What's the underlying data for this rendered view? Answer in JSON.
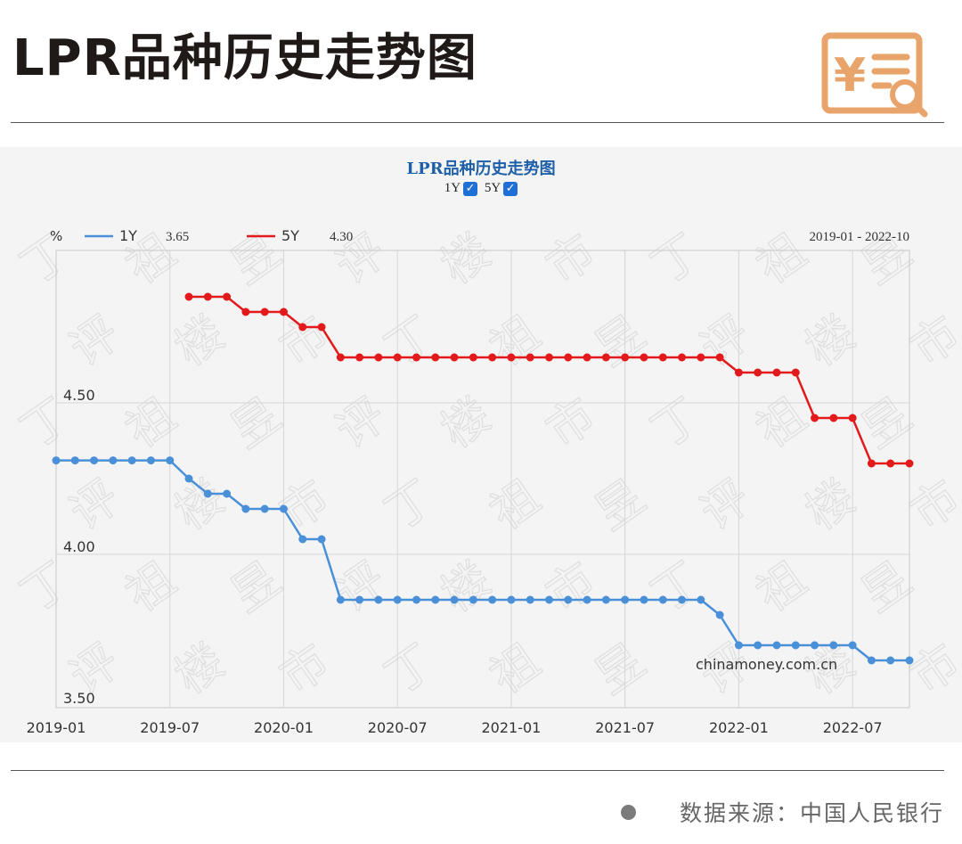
{
  "page": {
    "title": "LPR品种历史走势图",
    "source": "数据来源：中国人民银行"
  },
  "colors": {
    "accent_logo": "#e8a46a",
    "series_1y": "#4a90d9",
    "series_5y": "#e31a1c",
    "heading": "#1d5fa8"
  },
  "logo": {
    "icon": "yuan-document-search-icon"
  },
  "chart_data": {
    "type": "line",
    "title": "LPR品种历史走势图",
    "toggles": [
      {
        "label": "1Y",
        "checked": true
      },
      {
        "label": "5Y",
        "checked": true
      }
    ],
    "ylabel": "%",
    "date_range": "2019-01 - 2022-10",
    "watermark_text": "chinamoney.com.cn",
    "legend": [
      {
        "name": "1Y",
        "latest": "3.65"
      },
      {
        "name": "5Y",
        "latest": "4.30"
      }
    ],
    "legend_position": "top-left",
    "grid": true,
    "xlim": [
      "2019-01",
      "2022-10"
    ],
    "ylim": [
      3.5,
      4.95
    ],
    "y_ticks": [
      "4.50",
      "4.00",
      "3.50"
    ],
    "x_ticks": [
      "2019-01",
      "2019-07",
      "2020-01",
      "2020-07",
      "2021-01",
      "2021-07",
      "2022-01",
      "2022-07"
    ],
    "x": [
      "2019-01",
      "2019-02",
      "2019-03",
      "2019-04",
      "2019-05",
      "2019-06",
      "2019-07",
      "2019-08",
      "2019-09",
      "2019-10",
      "2019-11",
      "2019-12",
      "2020-01",
      "2020-02",
      "2020-03",
      "2020-04",
      "2020-05",
      "2020-06",
      "2020-07",
      "2020-08",
      "2020-09",
      "2020-10",
      "2020-11",
      "2020-12",
      "2021-01",
      "2021-02",
      "2021-03",
      "2021-04",
      "2021-05",
      "2021-06",
      "2021-07",
      "2021-08",
      "2021-09",
      "2021-10",
      "2021-11",
      "2021-12",
      "2022-01",
      "2022-02",
      "2022-03",
      "2022-04",
      "2022-05",
      "2022-06",
      "2022-07",
      "2022-08",
      "2022-09",
      "2022-10"
    ],
    "series": [
      {
        "name": "1Y",
        "values": [
          4.31,
          4.31,
          4.31,
          4.31,
          4.31,
          4.31,
          4.31,
          4.25,
          4.2,
          4.2,
          4.15,
          4.15,
          4.15,
          4.05,
          4.05,
          3.85,
          3.85,
          3.85,
          3.85,
          3.85,
          3.85,
          3.85,
          3.85,
          3.85,
          3.85,
          3.85,
          3.85,
          3.85,
          3.85,
          3.85,
          3.85,
          3.85,
          3.85,
          3.85,
          3.85,
          3.8,
          3.7,
          3.7,
          3.7,
          3.7,
          3.7,
          3.7,
          3.7,
          3.65,
          3.65,
          3.65
        ]
      },
      {
        "name": "5Y",
        "values": [
          null,
          null,
          null,
          null,
          null,
          null,
          null,
          4.85,
          4.85,
          4.85,
          4.8,
          4.8,
          4.8,
          4.75,
          4.75,
          4.65,
          4.65,
          4.65,
          4.65,
          4.65,
          4.65,
          4.65,
          4.65,
          4.65,
          4.65,
          4.65,
          4.65,
          4.65,
          4.65,
          4.65,
          4.65,
          4.65,
          4.65,
          4.65,
          4.65,
          4.65,
          4.6,
          4.6,
          4.6,
          4.6,
          4.45,
          4.45,
          4.45,
          4.3,
          4.3,
          4.3
        ]
      }
    ]
  }
}
